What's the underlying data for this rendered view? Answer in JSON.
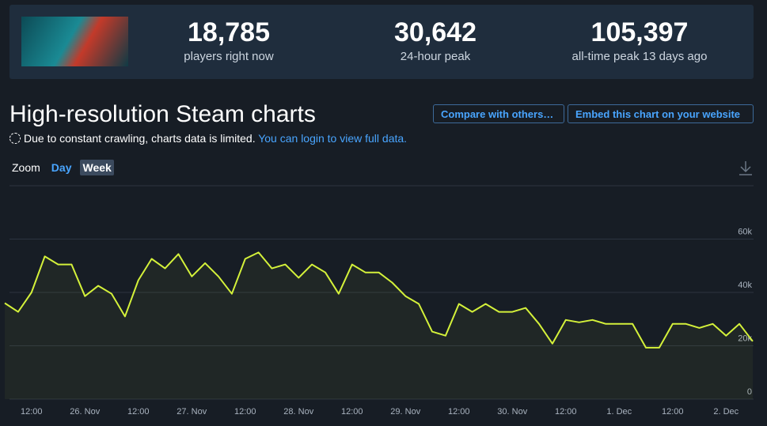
{
  "stats": [
    {
      "value": "18,785",
      "label": "players right now"
    },
    {
      "value": "30,642",
      "label": "24-hour peak"
    },
    {
      "value": "105,397",
      "label": "all-time peak 13 days ago"
    }
  ],
  "title": "High-resolution Steam charts",
  "buttons": [
    "Compare with others…",
    "Embed this chart on your website"
  ],
  "notice": {
    "text": "Due to constant crawling, charts data is limited.",
    "link": "You can login to view full data."
  },
  "zoom": {
    "label": "Zoom",
    "options": [
      "Day",
      "Week"
    ]
  },
  "chart_data": {
    "type": "line",
    "color": "#d4f13a",
    "categories": [
      null,
      null,
      "12:00",
      null,
      null,
      null,
      "26. Nov",
      null,
      null,
      null,
      "12:00",
      null,
      null,
      null,
      "27. Nov",
      null,
      null,
      null,
      "12:00",
      null,
      null,
      null,
      "28. Nov",
      null,
      null,
      null,
      "12:00",
      null,
      null,
      null,
      "29. Nov",
      null,
      null,
      null,
      "12:00",
      null,
      null,
      null,
      "30. Nov",
      null,
      null,
      null,
      "12:00",
      null,
      null,
      null,
      "1. Dec",
      null,
      null,
      null,
      "12:00",
      null,
      null,
      null,
      "2. Dec",
      null,
      null
    ],
    "values": [
      36000,
      32700,
      40000,
      53500,
      50500,
      50500,
      38600,
      42500,
      39500,
      31000,
      44600,
      52600,
      49000,
      54400,
      46000,
      51000,
      46000,
      39500,
      52600,
      55000,
      49000,
      50500,
      45500,
      50500,
      47500,
      39500,
      50500,
      47500,
      47500,
      43700,
      38600,
      35700,
      25300,
      23800,
      35700,
      32700,
      35700,
      32700,
      32700,
      34200,
      28200,
      20800,
      29700,
      28800,
      29700,
      28200,
      28200,
      28200,
      19300,
      19300,
      28200,
      28200,
      26700,
      28200,
      23800,
      28200,
      21700
    ],
    "ylim": [
      0,
      80000
    ],
    "yticks": [
      0,
      {
        "value": 20000,
        "label": "20k"
      },
      {
        "value": 40000,
        "label": "40k"
      },
      {
        "value": 60000,
        "label": "60k"
      }
    ],
    "grid": true
  }
}
